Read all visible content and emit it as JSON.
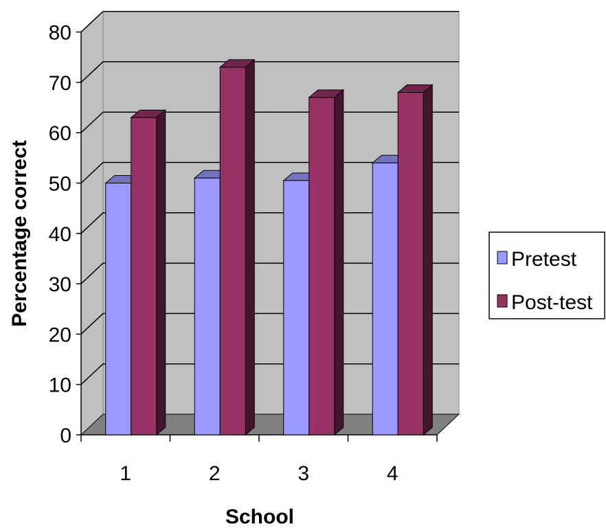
{
  "chart_data": {
    "type": "bar",
    "categories": [
      "1",
      "2",
      "3",
      "4"
    ],
    "series": [
      {
        "name": "Pretest",
        "values": [
          50,
          51,
          50.5,
          54
        ],
        "color": "#9999ff"
      },
      {
        "name": "Post-test",
        "values": [
          63,
          73,
          67,
          68
        ],
        "color": "#993366"
      }
    ],
    "title": "",
    "xlabel": "School",
    "ylabel": "Percentage correct",
    "ylim": [
      0,
      80
    ],
    "yticks": [
      "0",
      "10",
      "20",
      "30",
      "40",
      "50",
      "60",
      "70",
      "80"
    ],
    "grid": true,
    "legend": "right",
    "style": "3d",
    "wall_color": "#c0c0c0",
    "floor_color": "#808080"
  }
}
